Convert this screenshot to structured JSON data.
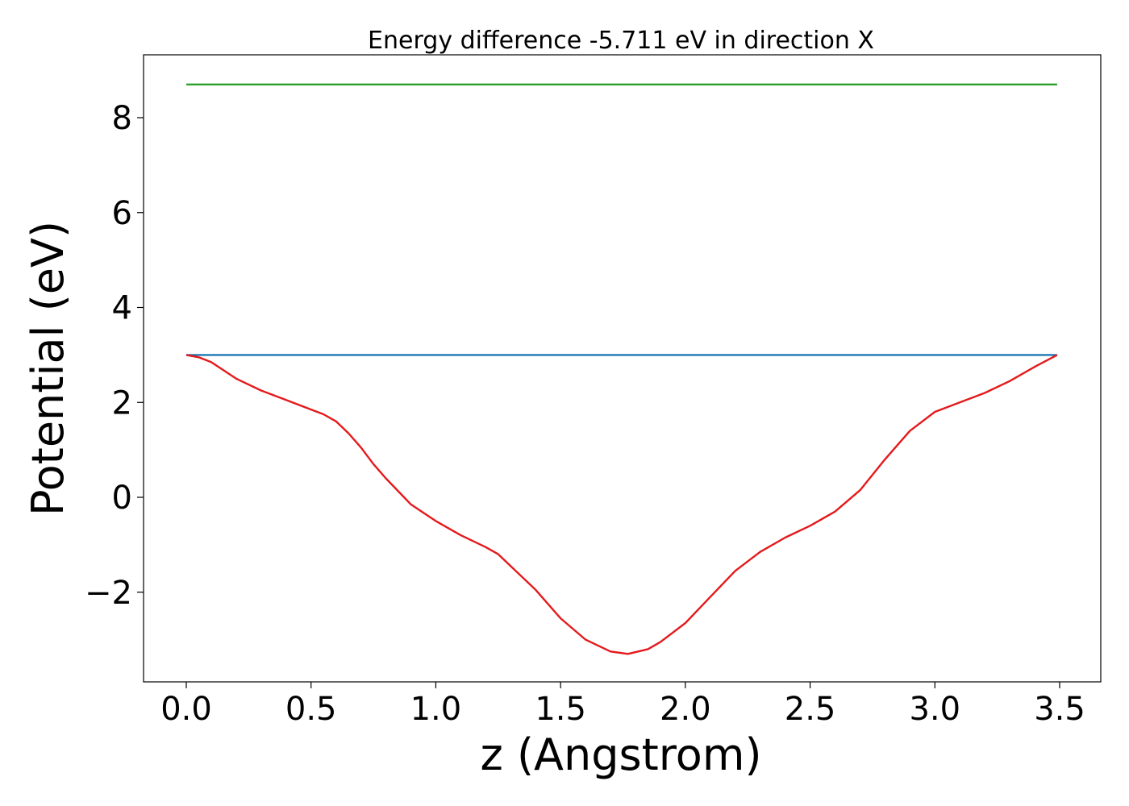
{
  "chart_data": {
    "type": "line",
    "title": "Energy difference -5.711 eV in direction X",
    "xlabel": "z (Angstrom)",
    "ylabel": "Potential (eV)",
    "xlim": [
      -0.175,
      3.5
    ],
    "ylim": [
      -3.9,
      9.3
    ],
    "xticks": [
      0.0,
      0.5,
      1.0,
      1.5,
      2.0,
      2.5,
      3.0,
      3.5
    ],
    "xtick_labels": [
      "0.0",
      "0.5",
      "1.0",
      "1.5",
      "2.0",
      "2.5",
      "3.0",
      "3.5"
    ],
    "yticks": [
      -2,
      0,
      2,
      4,
      6,
      8
    ],
    "ytick_labels": [
      "−2",
      "0",
      "2",
      "4",
      "6",
      "8"
    ],
    "grid": false,
    "series": [
      {
        "color": "#2ca02c",
        "x": [
          0.0,
          3.49
        ],
        "y": [
          8.7,
          8.7
        ]
      },
      {
        "color": "#1f77b4",
        "x": [
          0.0,
          3.49
        ],
        "y": [
          3.0,
          3.0
        ]
      },
      {
        "color": "#e41a1c",
        "x": [
          0.0,
          0.05,
          0.1,
          0.2,
          0.3,
          0.4,
          0.5,
          0.55,
          0.6,
          0.65,
          0.7,
          0.75,
          0.8,
          0.9,
          1.0,
          1.1,
          1.2,
          1.25,
          1.3,
          1.4,
          1.5,
          1.6,
          1.7,
          1.77,
          1.85,
          1.9,
          2.0,
          2.1,
          2.2,
          2.3,
          2.4,
          2.5,
          2.6,
          2.7,
          2.8,
          2.85,
          2.9,
          3.0,
          3.1,
          3.2,
          3.3,
          3.4,
          3.49
        ],
        "y": [
          3.0,
          2.95,
          2.85,
          2.5,
          2.25,
          2.05,
          1.85,
          1.75,
          1.6,
          1.35,
          1.05,
          0.7,
          0.4,
          -0.15,
          -0.5,
          -0.8,
          -1.05,
          -1.2,
          -1.45,
          -1.95,
          -2.55,
          -3.0,
          -3.25,
          -3.3,
          -3.2,
          -3.05,
          -2.65,
          -2.1,
          -1.55,
          -1.15,
          -0.85,
          -0.6,
          -0.3,
          0.15,
          0.8,
          1.1,
          1.4,
          1.8,
          2.0,
          2.2,
          2.45,
          2.75,
          3.0
        ]
      }
    ]
  }
}
